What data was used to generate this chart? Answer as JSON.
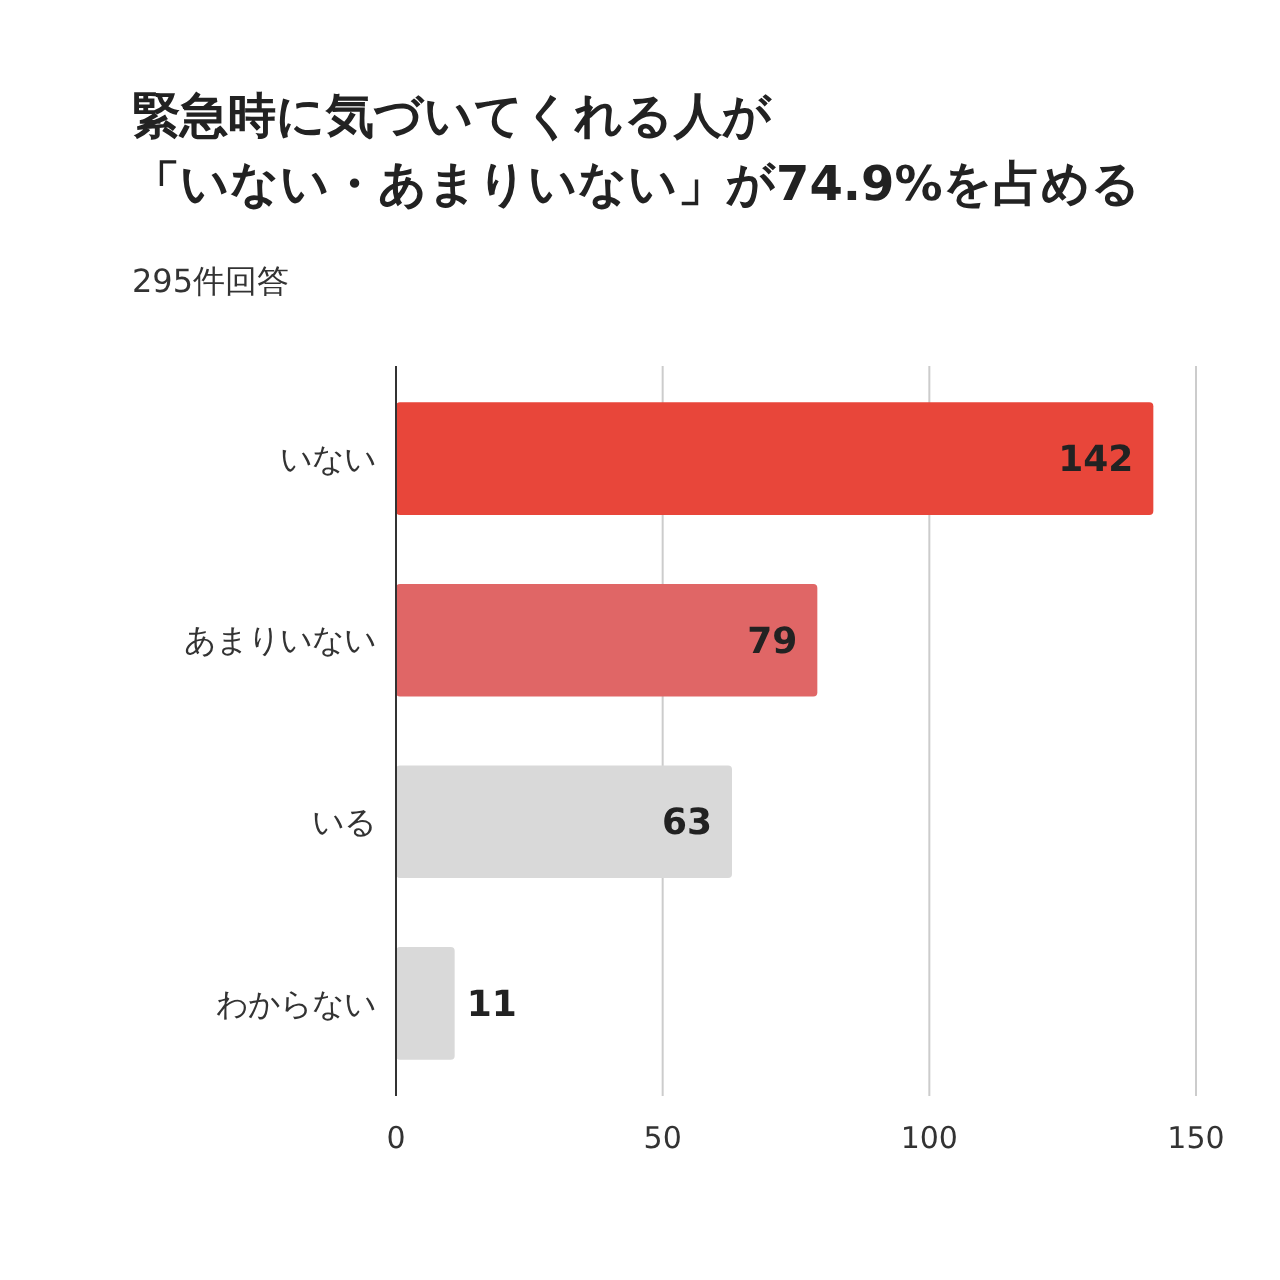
{
  "chart_data": {
    "type": "bar",
    "orientation": "horizontal",
    "title": "緊急時に気づいてくれる人が「いない・あまりいない」が74.9%を占める",
    "subtitle": "295件回答",
    "categories": [
      "いない",
      "あまりいない",
      "いる",
      "わからない"
    ],
    "values": [
      142,
      79,
      63,
      11
    ],
    "colors": [
      "#e8463a",
      "#e06666",
      "#d9d9d9",
      "#d9d9d9"
    ],
    "xlim": [
      0,
      150
    ],
    "xticks": [
      0,
      50,
      100,
      150
    ],
    "grid": "x",
    "data_labels": true
  }
}
